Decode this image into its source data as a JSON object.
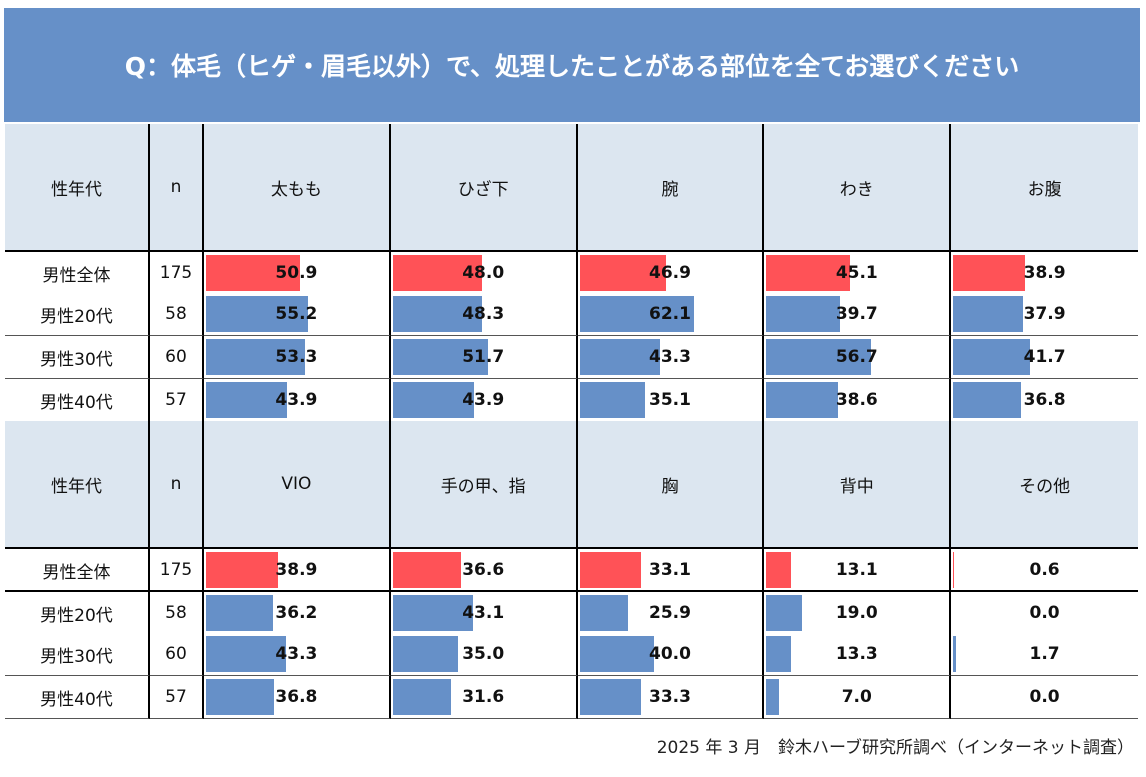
{
  "title": "Q：体毛（ヒゲ・眉毛以外）で、処理したことがある部位を全てお選びください",
  "footer": "2025 年 3 月　鈴木ハーブ研究所調べ（インターネット調査）",
  "colors": {
    "header_banner": "#6690c8",
    "header_cell": "#dce6f0",
    "total_bar": "#ff5257",
    "group_bar": "#6690c8"
  },
  "chart_data": {
    "type": "table",
    "value_scale_max": 100,
    "row_header": "性年代",
    "n_header": "n",
    "rows": [
      {
        "label": "男性全体",
        "n": "175"
      },
      {
        "label": "男性20代",
        "n": "58"
      },
      {
        "label": "男性30代",
        "n": "60"
      },
      {
        "label": "男性40代",
        "n": "57"
      }
    ],
    "blocks": [
      {
        "columns": [
          "太もも",
          "ひざ下",
          "腕",
          "わき",
          "お腹"
        ],
        "values": [
          [
            50.9,
            48.0,
            46.9,
            45.1,
            38.9
          ],
          [
            55.2,
            48.3,
            62.1,
            39.7,
            37.9
          ],
          [
            53.3,
            51.7,
            43.3,
            56.7,
            41.7
          ],
          [
            43.9,
            43.9,
            35.1,
            38.6,
            36.8
          ]
        ]
      },
      {
        "columns": [
          "VIO",
          "手の甲、指",
          "胸",
          "背中",
          "その他"
        ],
        "values": [
          [
            38.9,
            36.6,
            33.1,
            13.1,
            0.6
          ],
          [
            36.2,
            43.1,
            25.9,
            19.0,
            0.0
          ],
          [
            43.3,
            35.0,
            40.0,
            13.3,
            1.7
          ],
          [
            36.8,
            31.6,
            33.3,
            7.0,
            0.0
          ]
        ]
      }
    ]
  }
}
